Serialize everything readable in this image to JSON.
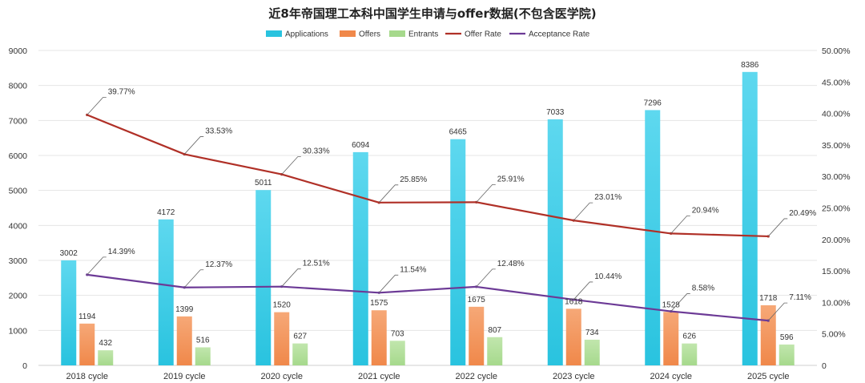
{
  "chart_data": {
    "type": "bar",
    "title": "近8年帝国理工本科中国学生申请与offer数据(不包含医学院)",
    "categories": [
      "2018 cycle",
      "2019 cycle",
      "2020 cycle",
      "2021 cycle",
      "2022 cycle",
      "2023 cycle",
      "2024 cycle",
      "2025 cycle"
    ],
    "series": [
      {
        "name": "Applications",
        "type": "bar",
        "axis": "left",
        "color": "#29c3df",
        "values": [
          3002,
          4172,
          5011,
          6094,
          6465,
          7033,
          7296,
          8386
        ]
      },
      {
        "name": "Offers",
        "type": "bar",
        "axis": "left",
        "color": "#f0884a",
        "values": [
          1194,
          1399,
          1520,
          1575,
          1675,
          1618,
          1528,
          1718
        ]
      },
      {
        "name": "Entrants",
        "type": "bar",
        "axis": "left",
        "color": "#a6d98c",
        "values": [
          432,
          516,
          627,
          703,
          807,
          734,
          626,
          596
        ]
      },
      {
        "name": "Offer Rate",
        "type": "line",
        "axis": "right",
        "color": "#b03027",
        "values": [
          39.77,
          33.53,
          30.33,
          25.85,
          25.91,
          23.01,
          20.94,
          20.49
        ],
        "labels": [
          "39.77%",
          "33.53%",
          "30.33%",
          "25.85%",
          "25.91%",
          "23.01%",
          "20.94%",
          "20.49%"
        ]
      },
      {
        "name": "Acceptance Rate",
        "type": "line",
        "axis": "right",
        "color": "#6c3a96",
        "values": [
          14.39,
          12.37,
          12.51,
          11.54,
          12.48,
          10.44,
          8.58,
          7.11
        ],
        "labels": [
          "14.39%",
          "12.37%",
          "12.51%",
          "11.54%",
          "12.48%",
          "10.44%",
          "8.58%",
          "7.11%"
        ]
      }
    ],
    "y_left": {
      "min": 0,
      "max": 9000,
      "ticks": [
        "0",
        "1000",
        "2000",
        "3000",
        "4000",
        "5000",
        "6000",
        "7000",
        "8000",
        "9000"
      ]
    },
    "y_right": {
      "min": 0,
      "max": 50,
      "ticks": [
        "0",
        "5.00%",
        "10.00%",
        "15.00%",
        "20.00%",
        "25.00%",
        "30.00%",
        "35.00%",
        "40.00%",
        "45.00%",
        "50.00%"
      ]
    },
    "grid": true,
    "legend": "top-center"
  }
}
